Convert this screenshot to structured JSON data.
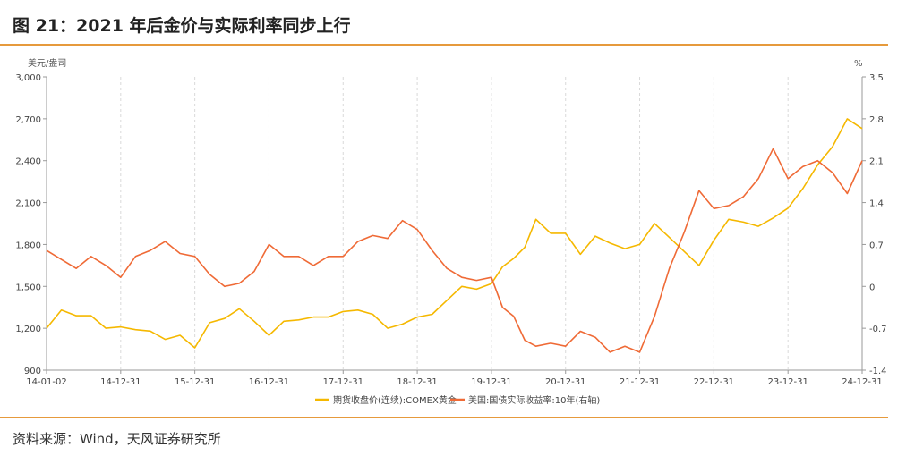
{
  "page": {
    "title": "图 21：2021 年后金价与实际利率同步上行",
    "source": "资料来源：Wind，天风证券研究所"
  },
  "colors": {
    "gold": "#f5b800",
    "yield": "#ef6a36",
    "rule": "#e69a3c",
    "axis": "#9a9a9a",
    "grid": "#d9d9d9"
  },
  "chart_data": {
    "type": "line",
    "left_unit": "美元/盎司",
    "right_unit": "%",
    "y_left_ticks": [
      "3,000",
      "2,700",
      "2,400",
      "2,100",
      "1,800",
      "1,500",
      "1,200",
      "900"
    ],
    "y_right_ticks": [
      "3.5",
      "2.8",
      "2.1",
      "1.4",
      "0.7",
      "0",
      "-0.7",
      "-1.4"
    ],
    "x_ticks": [
      "14-01-02",
      "14-12-31",
      "15-12-31",
      "16-12-31",
      "17-12-31",
      "18-12-31",
      "19-12-31",
      "20-12-31",
      "21-12-31",
      "22-12-31",
      "23-12-31",
      "24-12-31"
    ],
    "ylim_left": [
      900,
      3000
    ],
    "ylim_right": [
      -1.4,
      3.5
    ],
    "x_range": [
      2014.0,
      2025.0
    ],
    "grid": "vertical",
    "legend_position": "bottom",
    "series": [
      {
        "name": "期货收盘价(连续):COMEX黄金",
        "axis": "left",
        "x": [
          2014.0,
          2014.2,
          2014.4,
          2014.6,
          2014.8,
          2015.0,
          2015.2,
          2015.4,
          2015.6,
          2015.8,
          2016.0,
          2016.2,
          2016.4,
          2016.6,
          2016.8,
          2017.0,
          2017.2,
          2017.4,
          2017.6,
          2017.8,
          2018.0,
          2018.2,
          2018.4,
          2018.6,
          2018.8,
          2019.0,
          2019.2,
          2019.4,
          2019.6,
          2019.8,
          2020.0,
          2020.15,
          2020.3,
          2020.45,
          2020.6,
          2020.8,
          2021.0,
          2021.2,
          2021.4,
          2021.6,
          2021.8,
          2022.0,
          2022.2,
          2022.4,
          2022.6,
          2022.8,
          2023.0,
          2023.2,
          2023.4,
          2023.6,
          2023.8,
          2024.0,
          2024.2,
          2024.4,
          2024.6,
          2024.8,
          2025.0
        ],
        "values": [
          1200,
          1330,
          1290,
          1290,
          1200,
          1210,
          1190,
          1180,
          1120,
          1150,
          1060,
          1240,
          1270,
          1340,
          1250,
          1150,
          1250,
          1260,
          1280,
          1280,
          1320,
          1330,
          1300,
          1200,
          1230,
          1280,
          1300,
          1400,
          1500,
          1480,
          1520,
          1640,
          1700,
          1780,
          1980,
          1880,
          1880,
          1730,
          1860,
          1810,
          1770,
          1800,
          1950,
          1850,
          1750,
          1650,
          1830,
          1980,
          1960,
          1930,
          1990,
          2060,
          2200,
          2370,
          2500,
          2700,
          2630
        ]
      },
      {
        "name": "美国:国债实际收益率:10年(右轴)",
        "axis": "right",
        "x": [
          2014.0,
          2014.2,
          2014.4,
          2014.6,
          2014.8,
          2015.0,
          2015.2,
          2015.4,
          2015.6,
          2015.8,
          2016.0,
          2016.2,
          2016.4,
          2016.6,
          2016.8,
          2017.0,
          2017.2,
          2017.4,
          2017.6,
          2017.8,
          2018.0,
          2018.2,
          2018.4,
          2018.6,
          2018.8,
          2019.0,
          2019.2,
          2019.4,
          2019.6,
          2019.8,
          2020.0,
          2020.15,
          2020.3,
          2020.45,
          2020.6,
          2020.8,
          2021.0,
          2021.2,
          2021.4,
          2021.6,
          2021.8,
          2022.0,
          2022.2,
          2022.4,
          2022.6,
          2022.8,
          2023.0,
          2023.2,
          2023.4,
          2023.6,
          2023.8,
          2024.0,
          2024.2,
          2024.4,
          2024.6,
          2024.8,
          2025.0
        ],
        "values": [
          0.6,
          0.45,
          0.3,
          0.5,
          0.35,
          0.15,
          0.5,
          0.6,
          0.75,
          0.55,
          0.5,
          0.2,
          0.0,
          0.05,
          0.25,
          0.7,
          0.5,
          0.5,
          0.35,
          0.5,
          0.5,
          0.75,
          0.85,
          0.8,
          1.1,
          0.95,
          0.6,
          0.3,
          0.15,
          0.1,
          0.15,
          -0.35,
          -0.5,
          -0.9,
          -1.0,
          -0.95,
          -1.0,
          -0.75,
          -0.85,
          -1.1,
          -1.0,
          -1.1,
          -0.5,
          0.3,
          0.9,
          1.6,
          1.3,
          1.35,
          1.5,
          1.8,
          2.3,
          1.8,
          2.0,
          2.1,
          1.9,
          1.55,
          2.1
        ]
      }
    ]
  }
}
